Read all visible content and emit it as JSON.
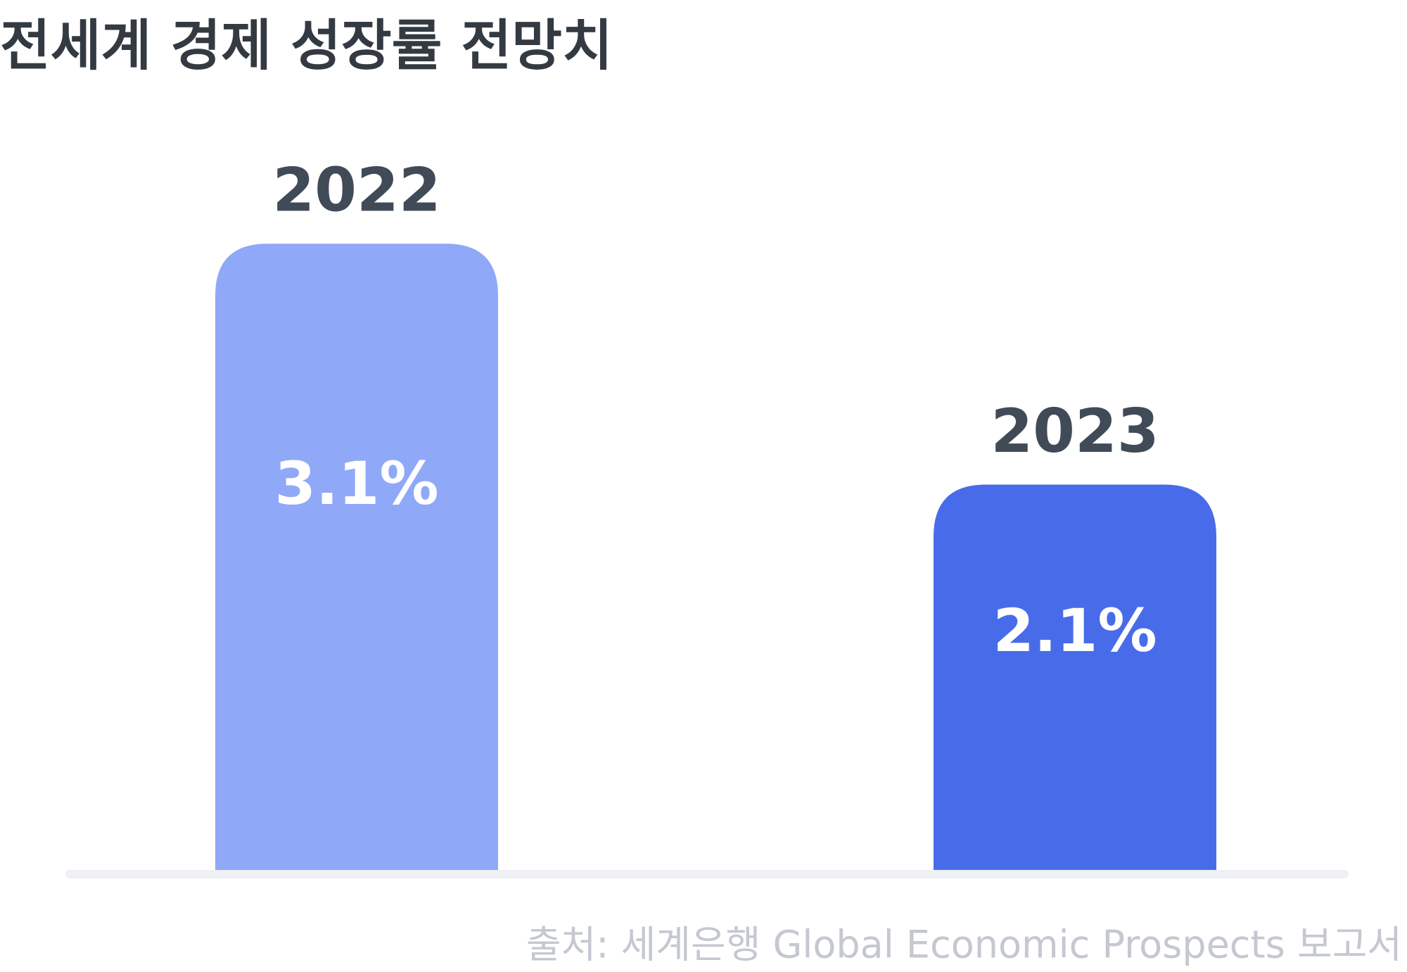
{
  "chart_data": {
    "type": "bar",
    "title": "전세계 경제 성장률 전망치",
    "categories": [
      "2022",
      "2023"
    ],
    "values": [
      3.1,
      2.1
    ],
    "value_labels": [
      "3.1%",
      "2.1%"
    ],
    "colors": [
      "#90a8f8",
      "#486ce9"
    ],
    "ylim": [
      0.5,
      3.2
    ],
    "source": "출처: 세계은행 Global Economic Prospects 보고서"
  }
}
